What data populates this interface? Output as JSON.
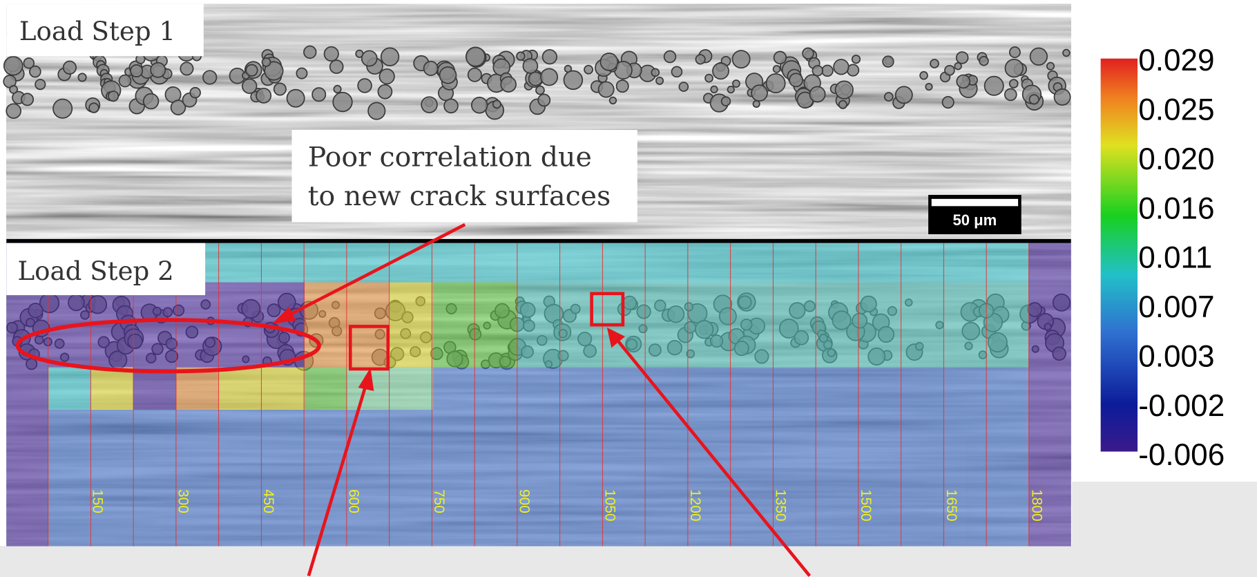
{
  "panels": {
    "top": {
      "label": "Load Step 1"
    },
    "bottom": {
      "label": "Load Step 2"
    }
  },
  "annotation": {
    "lines": [
      "Poor correlation due",
      "to new crack surfaces"
    ]
  },
  "scale_bar": "50 μm",
  "colorbar": {
    "ticks": [
      "0.029",
      "0.025",
      "0.020",
      "0.016",
      "0.011",
      "0.007",
      "0.003",
      "-0.002",
      "-0.006"
    ]
  },
  "x_labels": [
    "150",
    "300",
    "450",
    "600",
    "750",
    "900",
    "1050",
    "1200",
    "1350",
    "1500",
    "1650",
    "1800"
  ]
}
